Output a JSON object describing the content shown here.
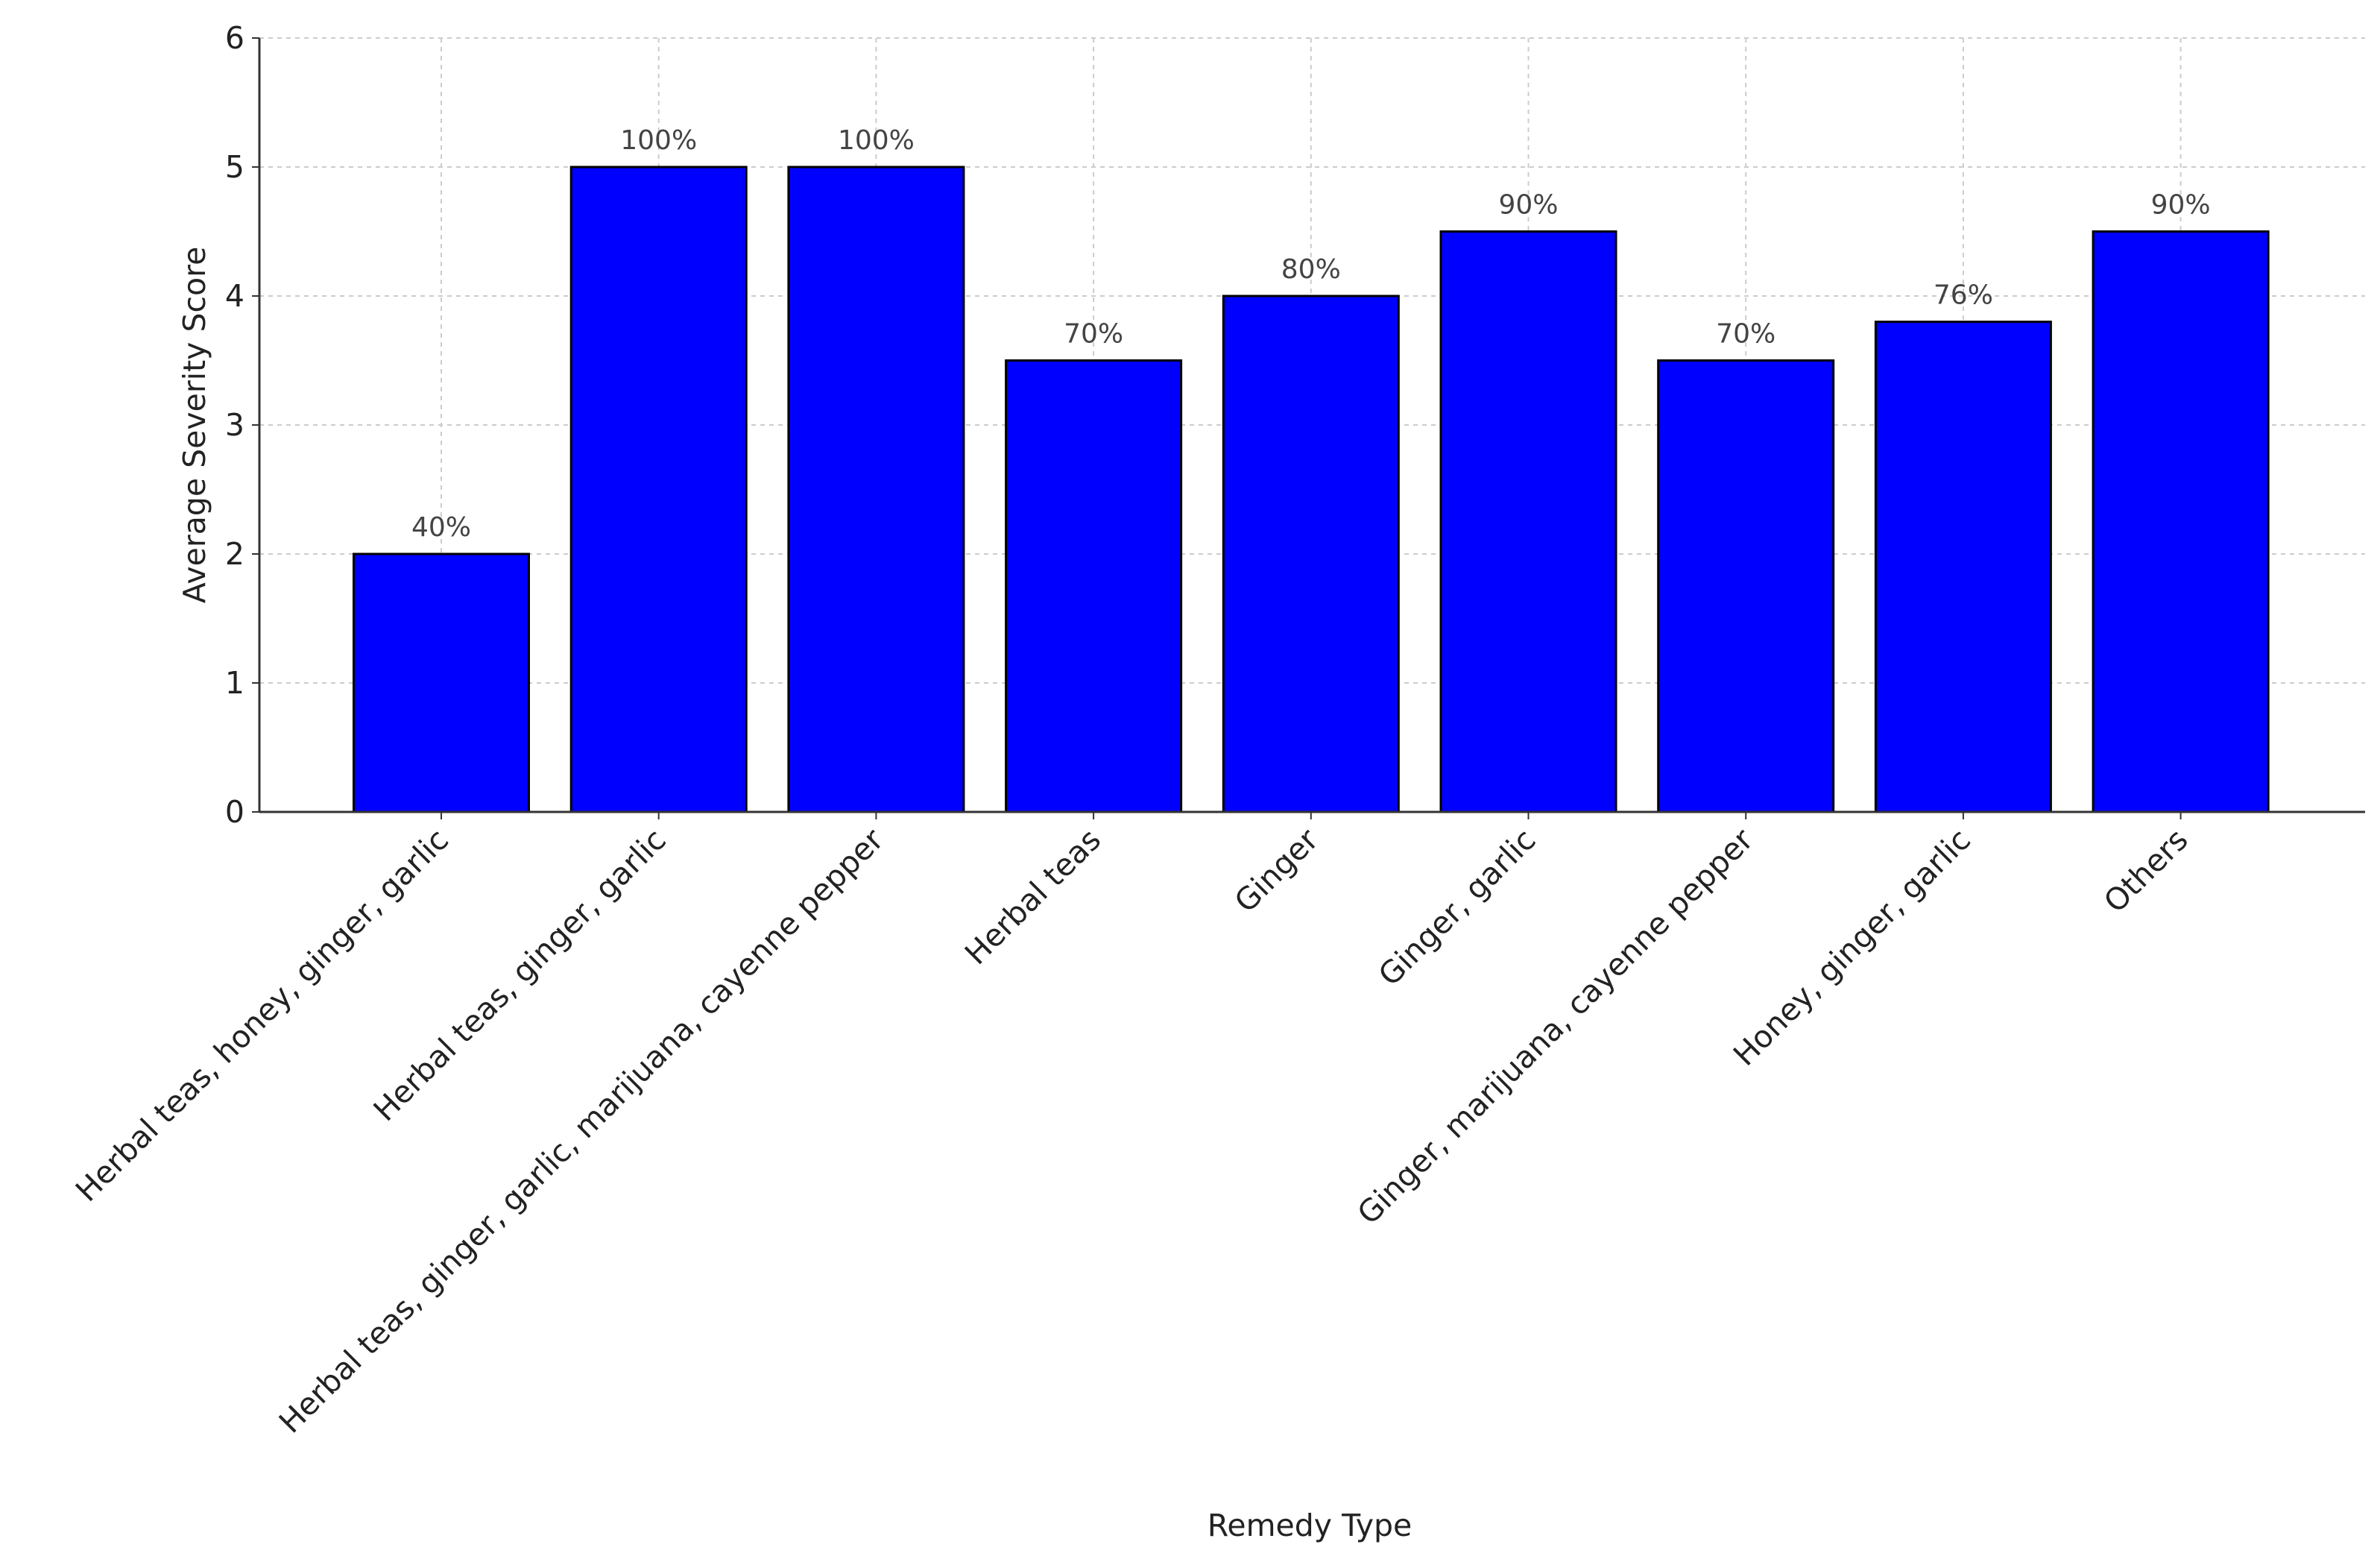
{
  "chart_data": {
    "type": "bar",
    "xlabel": "Remedy Type",
    "ylabel": "Average Severity Score",
    "categories": [
      "Herbal teas, honey, ginger, garlic",
      "Herbal teas, ginger, garlic",
      "Herbal teas, ginger, garlic, marijuana, cayenne pepper",
      "Herbal teas",
      "Ginger",
      "Ginger, garlic",
      "Ginger, marijuana, cayenne pepper",
      "Honey, ginger, garlic",
      "Others"
    ],
    "values": [
      2,
      5,
      5,
      3.5,
      4,
      4.5,
      3.5,
      3.8,
      4.5
    ],
    "bar_labels": [
      "40%",
      "100%",
      "100%",
      "70%",
      "80%",
      "90%",
      "70%",
      "76%",
      "90%"
    ],
    "color": "#0000ff",
    "ylim": [
      0,
      6
    ],
    "yticks": [
      0,
      1,
      2,
      3,
      4,
      5,
      6
    ],
    "grid": true
  }
}
